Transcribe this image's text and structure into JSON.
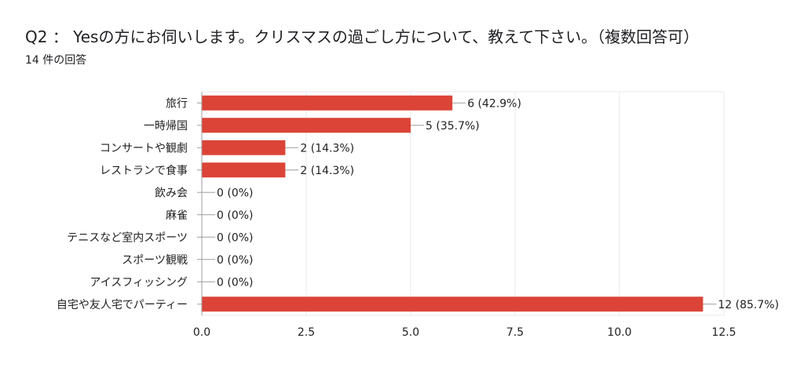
{
  "question": {
    "title": "Q2 ： Yesの方にお伺いします。クリスマスの過ごし方について、教えて下さい。（複数回答可）",
    "response_count": "14 件の回答"
  },
  "colors": {
    "bar": "#db4437",
    "grid": "#e8e8e8",
    "axis": "#9e9e9e",
    "text": "#212121"
  },
  "chart_data": {
    "type": "bar",
    "orientation": "horizontal",
    "categories": [
      "旅行",
      "一時帰国",
      "コンサートや観劇",
      "レストランで食事",
      "飲み会",
      "麻雀",
      "テニスなど室内スポーツ",
      "スポーツ観戦",
      "アイスフィッシング",
      "自宅や友人宅でパーティー"
    ],
    "values": [
      6,
      5,
      2,
      2,
      0,
      0,
      0,
      0,
      0,
      12
    ],
    "data_labels": [
      "6 (42.9%)",
      "5 (35.7%)",
      "2 (14.3%)",
      "2 (14.3%)",
      "0 (0%)",
      "0 (0%)",
      "0 (0%)",
      "0 (0%)",
      "0 (0%)",
      "12 (85.7%)"
    ],
    "xlim": [
      0,
      12.5
    ],
    "xticks": [
      0,
      2.5,
      5,
      7.5,
      10,
      12.5
    ],
    "xtick_labels": [
      "0.0",
      "2.5",
      "5.0",
      "7.5",
      "10.0",
      "12.5"
    ],
    "grid": true
  }
}
